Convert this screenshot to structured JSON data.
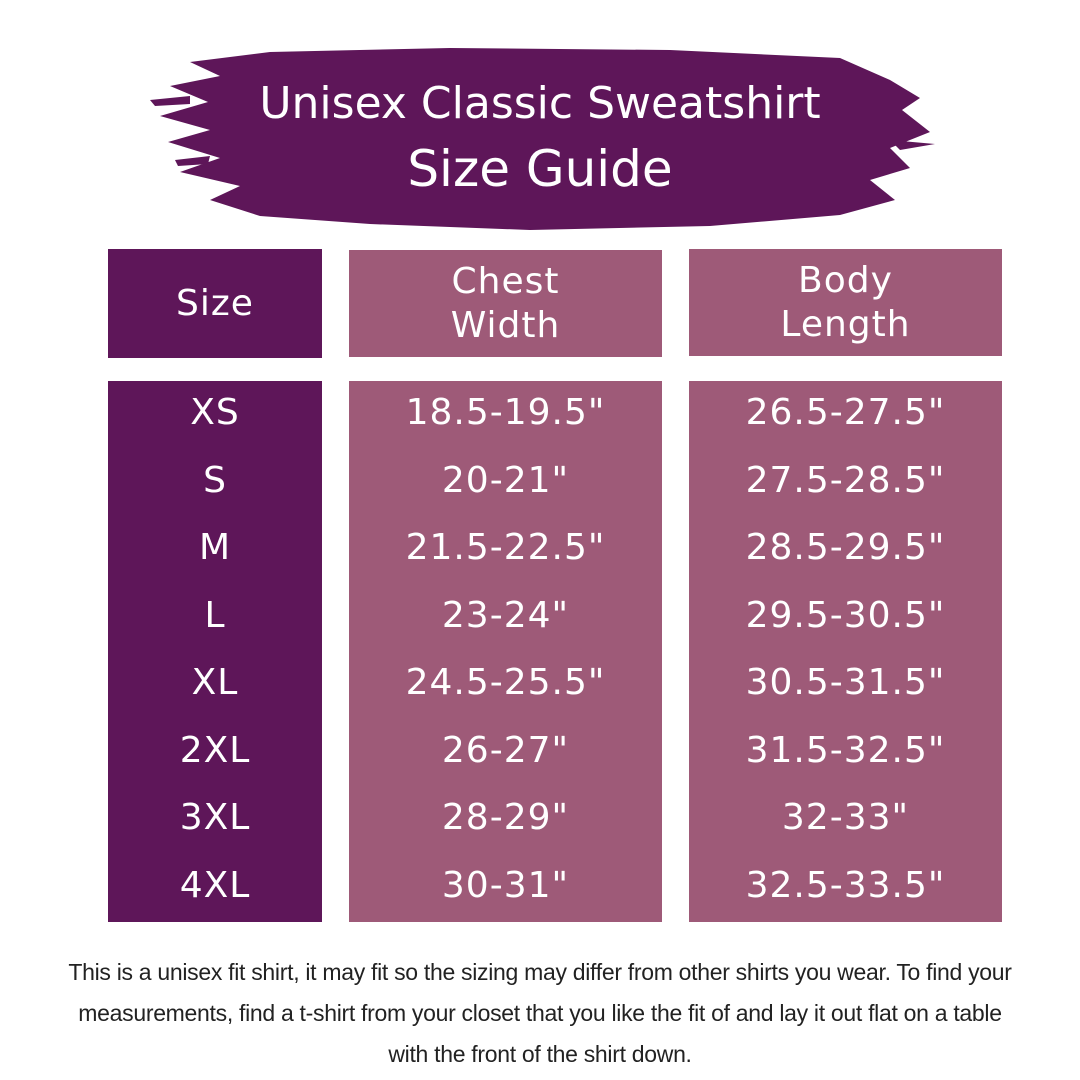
{
  "colors": {
    "dark_purple": "#5e1659",
    "mauve": "#9e5a78"
  },
  "title": {
    "line1": "Unisex Classic Sweatshirt",
    "line2": "Size Guide"
  },
  "table": {
    "headers": {
      "size": "Size",
      "chest": "Chest Width",
      "body": "Body Length"
    },
    "rows": [
      {
        "size": "XS",
        "chest": "18.5-19.5\"",
        "body": "26.5-27.5\""
      },
      {
        "size": "S",
        "chest": "20-21\"",
        "body": "27.5-28.5\""
      },
      {
        "size": "M",
        "chest": "21.5-22.5\"",
        "body": "28.5-29.5\""
      },
      {
        "size": "L",
        "chest": "23-24\"",
        "body": "29.5-30.5\""
      },
      {
        "size": "XL",
        "chest": "24.5-25.5\"",
        "body": "30.5-31.5\""
      },
      {
        "size": "2XL",
        "chest": "26-27\"",
        "body": "31.5-32.5\""
      },
      {
        "size": "3XL",
        "chest": "28-29\"",
        "body": "32-33\""
      },
      {
        "size": "4XL",
        "chest": "30-31\"",
        "body": "32.5-33.5\""
      }
    ]
  },
  "note": "This is a unisex fit shirt, it may fit so the sizing may differ from other shirts you wear. To find your measurements, find a t-shirt from your closet that you like the fit of and lay it out flat on a table with the front of the shirt down."
}
